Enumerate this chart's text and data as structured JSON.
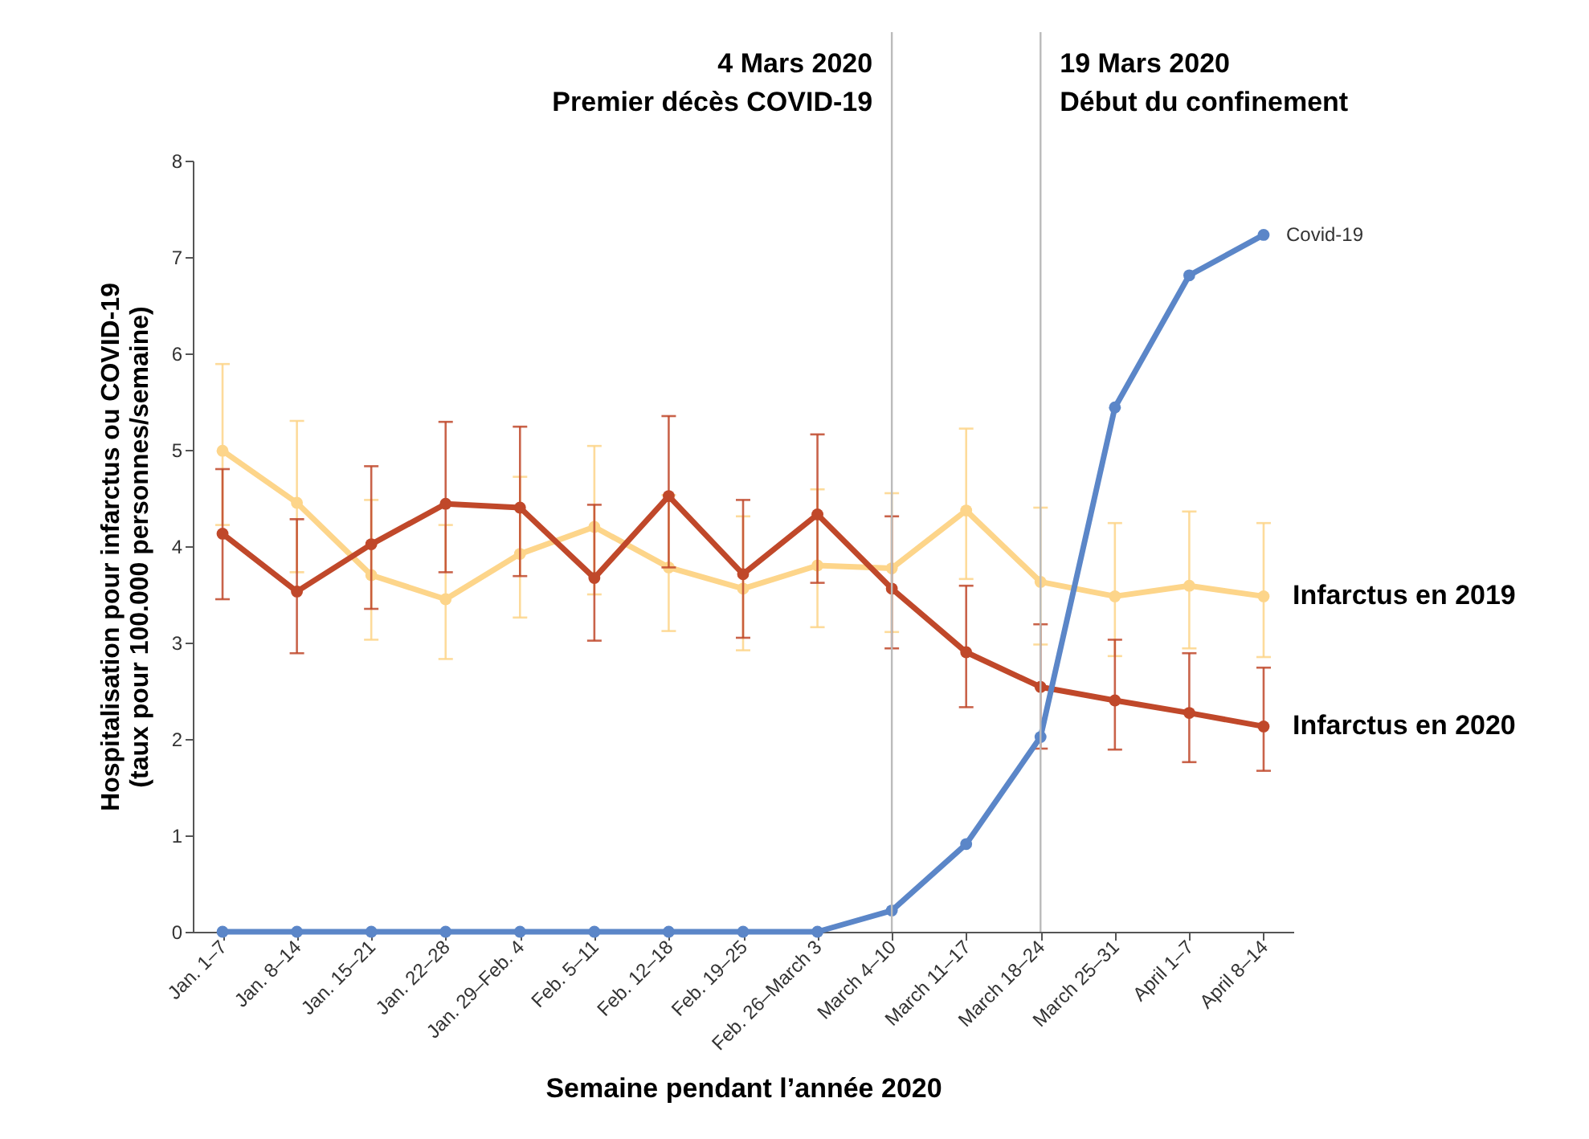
{
  "chart_data": {
    "type": "line",
    "xlabel": "Semaine pendant l’année 2020",
    "ylabel": "Hospitalisation pour infarctus ou COVID-19\n(taux pour 100.000 personnes/semaine)",
    "categories": [
      "Jan. 1–7",
      "Jan. 8–14",
      "Jan. 15–21",
      "Jan. 22–28",
      "Jan. 29–Feb. 4",
      "Feb. 5–11",
      "Feb. 12–18",
      "Feb. 19–25",
      "Feb. 26–March 3",
      "March 4–10",
      "March 11–17",
      "March 18–24",
      "March 25–31",
      "April 1–7",
      "April 8–14"
    ],
    "series": [
      {
        "name": "Infarctus en 2019",
        "color": "#fdd58a",
        "values": [
          4.99,
          4.45,
          3.7,
          3.45,
          3.92,
          4.2,
          3.78,
          3.56,
          3.8,
          3.77,
          4.37,
          3.63,
          3.48,
          3.59,
          3.48
        ],
        "errors": [
          [
            4.22,
            5.89
          ],
          [
            3.73,
            5.3
          ],
          [
            3.03,
            4.48
          ],
          [
            2.83,
            4.22
          ],
          [
            3.26,
            4.72
          ],
          [
            3.5,
            5.04
          ],
          [
            3.12,
            4.53
          ],
          [
            2.92,
            4.31
          ],
          [
            3.16,
            4.59
          ],
          [
            3.11,
            4.55
          ],
          [
            3.66,
            5.22
          ],
          [
            2.98,
            4.4
          ],
          [
            2.86,
            4.24
          ],
          [
            2.94,
            4.36
          ],
          [
            2.85,
            4.24
          ]
        ]
      },
      {
        "name": "Infarctus en 2020",
        "color": "#c0482a",
        "values": [
          4.13,
          3.53,
          4.02,
          4.44,
          4.4,
          3.67,
          4.52,
          3.71,
          4.33,
          3.56,
          2.9,
          2.54,
          2.4,
          2.27,
          2.13
        ],
        "errors": [
          [
            3.45,
            4.8
          ],
          [
            2.89,
            4.28
          ],
          [
            3.35,
            4.83
          ],
          [
            3.73,
            5.29
          ],
          [
            3.69,
            5.24
          ],
          [
            3.02,
            4.43
          ],
          [
            3.78,
            5.35
          ],
          [
            3.05,
            4.48
          ],
          [
            3.62,
            5.16
          ],
          [
            2.94,
            4.31
          ],
          [
            2.33,
            3.59
          ],
          [
            1.9,
            3.19
          ],
          [
            1.89,
            3.03
          ],
          [
            1.76,
            2.89
          ],
          [
            1.67,
            2.74
          ]
        ]
      },
      {
        "name": "Covid-19",
        "color": "#5b86c8",
        "values": [
          0,
          0,
          0,
          0,
          0,
          0,
          0,
          0,
          0,
          0.22,
          0.91,
          2.02,
          5.44,
          6.81,
          7.23
        ]
      }
    ],
    "ylim": [
      0,
      8
    ],
    "yticks": [
      0,
      1,
      2,
      3,
      4,
      5,
      6,
      7,
      8
    ],
    "grid": false,
    "marker": "circle",
    "line_style": "solid",
    "ref_lines": [
      {
        "axis": "x",
        "value": "March 4–10",
        "label": "4 Mars 2020\nPremier décès COVID-19",
        "color": "#bbbbbb"
      },
      {
        "axis": "x",
        "value": "March 18–24",
        "label": "19 Mars 2020\nDébut du confinement",
        "color": "#bbbbbb"
      }
    ]
  }
}
